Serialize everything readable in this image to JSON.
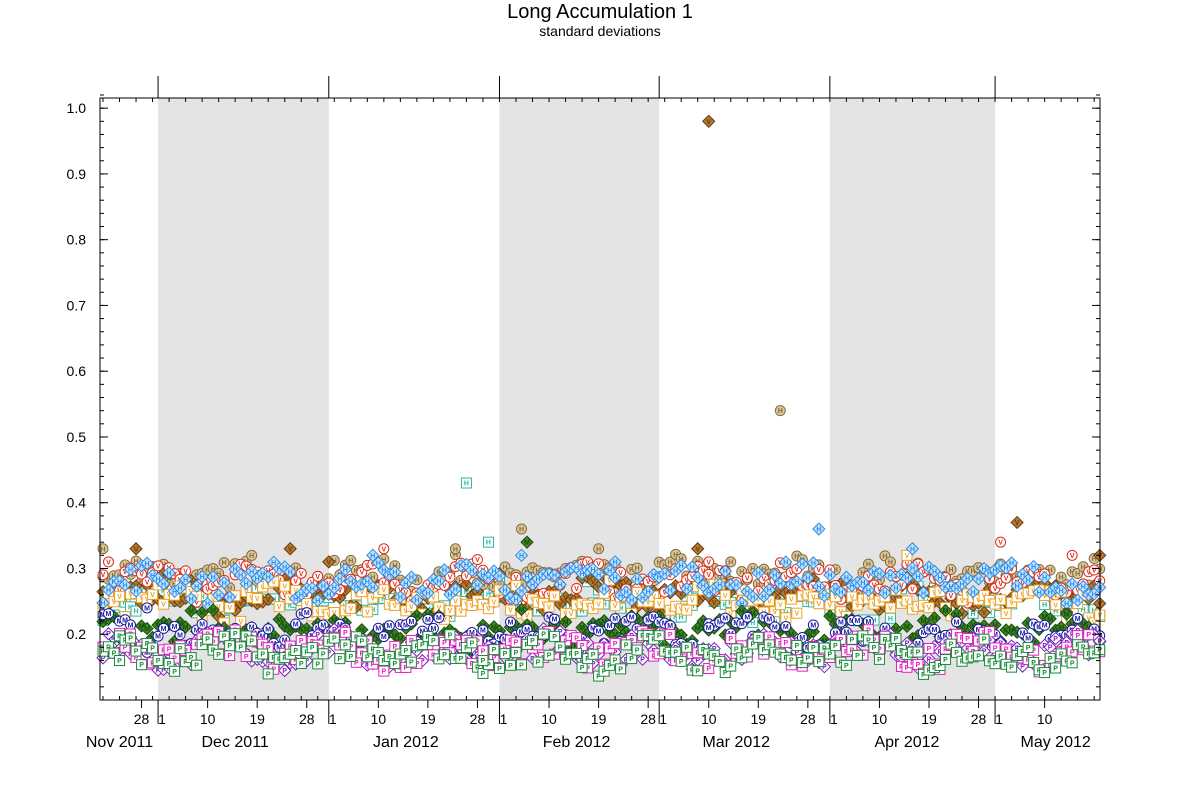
{
  "chart_data": {
    "type": "scatter",
    "title": "Long Accumulation 1",
    "subtitle": "standard deviations",
    "xlabel": "",
    "ylabel": "",
    "x_range": [
      "2011-11-21",
      "2012-05-20"
    ],
    "ylim": [
      0.1,
      1.03
    ],
    "y_ticks": [
      0.2,
      0.3,
      0.4,
      0.5,
      0.6,
      0.7,
      0.8,
      0.9,
      1.0
    ],
    "y_tick_labels": [
      "0.2",
      "0.3",
      "0.4",
      "0.5",
      "0.6",
      "0.7",
      "0.8",
      "0.9",
      "1.0"
    ],
    "x_ticks": [
      {
        "date": "2011-11-28",
        "label": "28"
      },
      {
        "date": "2011-12-01",
        "label": "1"
      },
      {
        "date": "2011-12-10",
        "label": "10"
      },
      {
        "date": "2011-12-19",
        "label": "19"
      },
      {
        "date": "2011-12-28",
        "label": "28"
      },
      {
        "date": "2012-01-01",
        "label": "1"
      },
      {
        "date": "2012-01-10",
        "label": "10"
      },
      {
        "date": "2012-01-19",
        "label": "19"
      },
      {
        "date": "2012-01-28",
        "label": "28"
      },
      {
        "date": "2012-02-01",
        "label": "1"
      },
      {
        "date": "2012-02-10",
        "label": "10"
      },
      {
        "date": "2012-02-19",
        "label": "19"
      },
      {
        "date": "2012-02-28",
        "label": "28"
      },
      {
        "date": "2012-03-01",
        "label": "1"
      },
      {
        "date": "2012-03-10",
        "label": "10"
      },
      {
        "date": "2012-03-19",
        "label": "19"
      },
      {
        "date": "2012-03-28",
        "label": "28"
      },
      {
        "date": "2012-04-01",
        "label": "1"
      },
      {
        "date": "2012-04-10",
        "label": "10"
      },
      {
        "date": "2012-04-19",
        "label": "19"
      },
      {
        "date": "2012-04-28",
        "label": "28"
      },
      {
        "date": "2012-05-01",
        "label": "1"
      },
      {
        "date": "2012-05-10",
        "label": "10"
      }
    ],
    "month_labels": [
      {
        "date": "2011-11-24",
        "label": "Nov 2011"
      },
      {
        "date": "2011-12-15",
        "label": "Dec 2011"
      },
      {
        "date": "2012-01-15",
        "label": "Jan 2012"
      },
      {
        "date": "2012-02-15",
        "label": "Feb 2012"
      },
      {
        "date": "2012-03-15",
        "label": "Mar 2012"
      },
      {
        "date": "2012-04-15",
        "label": "Apr 2012"
      },
      {
        "date": "2012-05-12",
        "label": "May 2012"
      }
    ],
    "shaded_months": [
      [
        "2011-12-01",
        "2012-01-01"
      ],
      [
        "2012-02-01",
        "2012-03-01"
      ],
      [
        "2012-04-01",
        "2012-05-01"
      ]
    ],
    "shade_color": "#e4e4e4",
    "grid": false,
    "legend": "none",
    "series": [
      {
        "symbol": "H",
        "shape": "square",
        "color": "#2ab7a0",
        "fill": "#ffffff",
        "baseline": 0.25,
        "points": [
          [
            "2012-01-26",
            0.43
          ],
          [
            "2012-01-30",
            0.34
          ]
        ]
      },
      {
        "symbol": "H",
        "shape": "circle",
        "color": "#8a6a3a",
        "fill": "#d8c8a0",
        "baseline": 0.29,
        "points": [
          [
            "2011-11-21",
            0.33
          ],
          [
            "2012-01-24",
            0.33
          ],
          [
            "2012-02-05",
            0.36
          ],
          [
            "2012-02-17",
            0.31
          ],
          [
            "2012-02-19",
            0.33
          ],
          [
            "2012-03-14",
            0.31
          ],
          [
            "2012-03-23",
            0.54
          ]
        ]
      },
      {
        "symbol": "V",
        "shape": "diamond",
        "color": "#6b3a10",
        "fill": "#b07a30",
        "baseline": 0.26,
        "points": [
          [
            "2011-11-27",
            0.33
          ],
          [
            "2011-12-25",
            0.33
          ],
          [
            "2012-01-01",
            0.31
          ],
          [
            "2012-03-08",
            0.33
          ],
          [
            "2012-03-10",
            0.98
          ],
          [
            "2012-05-05",
            0.37
          ],
          [
            "2012-05-20",
            0.32
          ]
        ]
      },
      {
        "symbol": "V",
        "shape": "circle",
        "color": "#e02a18",
        "fill": "#ffffff",
        "baseline": 0.28,
        "points": [
          [
            "2011-11-22",
            0.31
          ],
          [
            "2012-01-11",
            0.33
          ],
          [
            "2012-03-10",
            0.31
          ],
          [
            "2012-05-02",
            0.34
          ],
          [
            "2012-05-15",
            0.32
          ]
        ]
      },
      {
        "symbol": "V",
        "shape": "square",
        "color": "#f0a020",
        "fill": "#ffffff",
        "baseline": 0.25,
        "points": [
          [
            "2012-04-15",
            0.32
          ]
        ]
      },
      {
        "symbol": "H",
        "shape": "diamond",
        "color": "#2a8ae0",
        "fill": "#bfe0ff",
        "baseline": 0.28,
        "points": [
          [
            "2012-01-09",
            0.32
          ],
          [
            "2012-02-05",
            0.32
          ],
          [
            "2012-02-22",
            0.31
          ],
          [
            "2012-03-30",
            0.36
          ],
          [
            "2012-04-16",
            0.33
          ]
        ]
      },
      {
        "symbol": "M",
        "shape": "diamond",
        "color": "#1a4a10",
        "fill": "#3a8a20",
        "baseline": 0.205,
        "points": [
          [
            "2012-02-06",
            0.34
          ]
        ]
      },
      {
        "symbol": "M",
        "shape": "circle",
        "color": "#1a1aa0",
        "fill": "#ffffff",
        "baseline": 0.2,
        "points": [
          [
            "2011-11-29",
            0.24
          ],
          [
            "2012-03-10",
            0.21
          ]
        ]
      },
      {
        "symbol": "P",
        "shape": "diamond",
        "color": "#7a20c0",
        "fill": "#ffffff",
        "baseline": 0.175,
        "points": [
          [
            "2011-12-22",
            0.15
          ]
        ]
      },
      {
        "symbol": "P",
        "shape": "square",
        "color": "#e020c0",
        "fill": "#ffffff",
        "baseline": 0.175,
        "points": []
      },
      {
        "symbol": "P",
        "shape": "square",
        "color": "#1a8a3a",
        "fill": "#ffffff",
        "baseline": 0.17,
        "points": [
          [
            "2011-11-24",
            0.16
          ],
          [
            "2011-12-01",
            0.16
          ],
          [
            "2012-01-29",
            0.16
          ]
        ]
      }
    ]
  }
}
